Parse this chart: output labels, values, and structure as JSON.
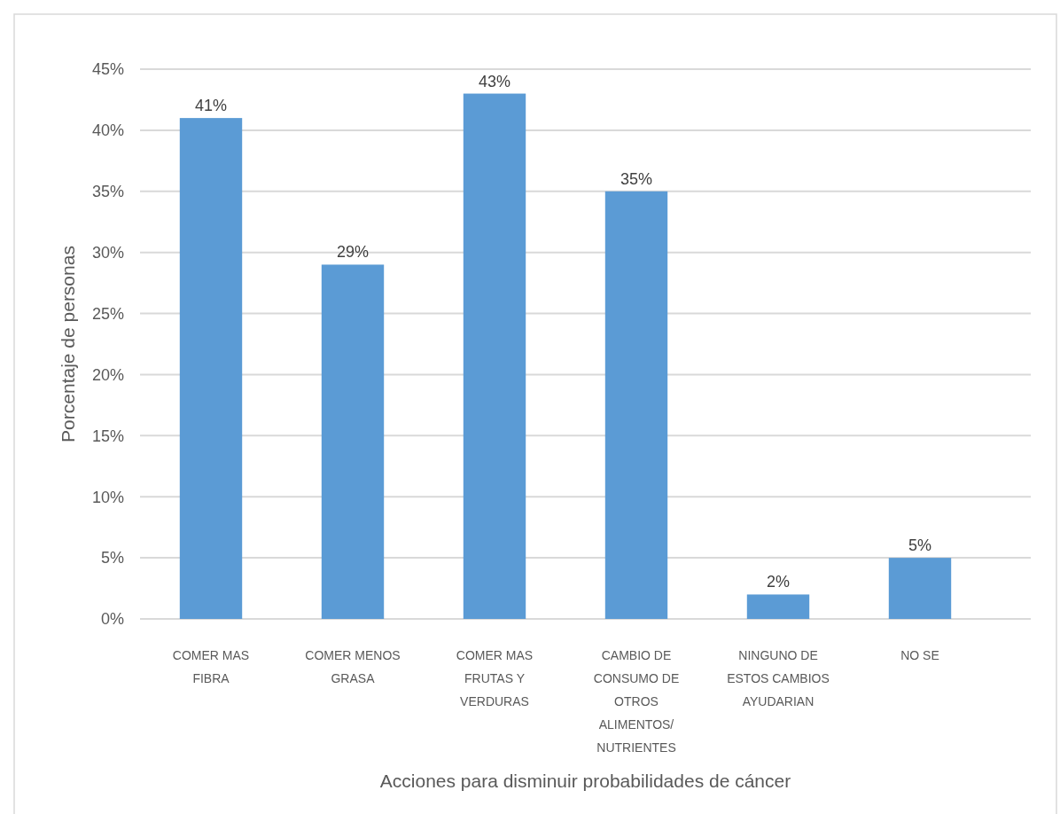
{
  "chart_data": {
    "type": "bar",
    "xlabel": "Acciones para disminuir probabilidades de cáncer",
    "ylabel": "Porcentaje de personas",
    "categories": [
      "COMER MAS FIBRA",
      "COMER MENOS GRASA",
      "COMER MAS FRUTAS Y VERDURAS",
      "CAMBIO DE CONSUMO DE OTROS ALIMENTOS/ NUTRIENTES",
      "NINGUNO DE ESTOS CAMBIOS AYUDARIAN",
      "NO SE"
    ],
    "values": [
      41,
      29,
      43,
      35,
      2,
      5
    ],
    "value_labels": [
      "41%",
      "29%",
      "43%",
      "35%",
      "2%",
      "5%"
    ],
    "color": "#5b9bd5",
    "ylim": [
      0,
      45
    ],
    "yticks": [
      {
        "value": 0,
        "label": "0%"
      },
      {
        "value": 5,
        "label": "5%"
      },
      {
        "value": 10,
        "label": "10%"
      },
      {
        "value": 15,
        "label": "15%"
      },
      {
        "value": 20,
        "label": "20%"
      },
      {
        "value": 25,
        "label": "25%"
      },
      {
        "value": 30,
        "label": "30%"
      },
      {
        "value": 35,
        "label": "35%"
      },
      {
        "value": 40,
        "label": "40%"
      },
      {
        "value": 45,
        "label": "45%"
      }
    ],
    "grid": "y"
  }
}
